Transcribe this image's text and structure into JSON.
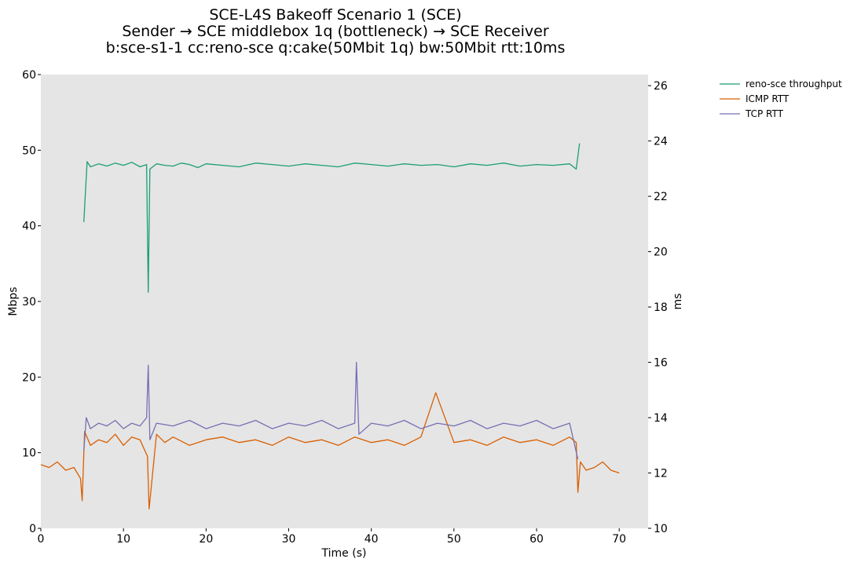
{
  "chart_data": {
    "type": "line",
    "title": [
      "SCE-L4S Bakeoff Scenario 1 (SCE)",
      "Sender → SCE middlebox 1q (bottleneck) → SCE Receiver",
      "b:sce-s1-1 cc:reno-sce q:cake(50Mbit 1q) bw:50Mbit rtt:10ms"
    ],
    "xlabel": "Time (s)",
    "ylabel_left": "Mbps",
    "ylabel_right": "ms",
    "xlim": [
      0,
      73.5
    ],
    "ylim_left": [
      0,
      60
    ],
    "ylim_right": [
      10,
      26.4
    ],
    "xticks": [
      0,
      10,
      20,
      30,
      40,
      50,
      60,
      70
    ],
    "yticks_left": [
      0,
      10,
      20,
      30,
      40,
      50,
      60
    ],
    "yticks_right": [
      10,
      12,
      14,
      16,
      18,
      20,
      22,
      24,
      26
    ],
    "grid": false,
    "legend_position": "top-right-outside",
    "series": [
      {
        "name": "reno-sce throughput",
        "axis": "left",
        "color": "#1b9e77",
        "x": [
          5.2,
          5.6,
          6,
          7,
          8,
          9,
          10,
          11,
          12,
          12.8,
          13,
          13.2,
          14,
          15,
          16,
          17,
          18,
          19,
          20,
          22,
          24,
          26,
          28,
          30,
          32,
          34,
          36,
          38,
          40,
          42,
          44,
          46,
          48,
          50,
          52,
          54,
          56,
          58,
          60,
          62,
          64,
          64.8,
          65.2
        ],
        "y": [
          40.5,
          48.5,
          47.8,
          48.2,
          47.9,
          48.3,
          48.0,
          48.4,
          47.8,
          48.1,
          31.2,
          47.5,
          48.2,
          48.0,
          47.9,
          48.3,
          48.1,
          47.7,
          48.2,
          48.0,
          47.8,
          48.3,
          48.1,
          47.9,
          48.2,
          48.0,
          47.8,
          48.3,
          48.1,
          47.9,
          48.2,
          48.0,
          48.1,
          47.8,
          48.2,
          48.0,
          48.3,
          47.9,
          48.1,
          48.0,
          48.2,
          47.5,
          50.9
        ]
      },
      {
        "name": "ICMP RTT",
        "axis": "right",
        "color": "#d95f02",
        "x": [
          0,
          1,
          2,
          3,
          4,
          4.8,
          5.0,
          5.3,
          6,
          7,
          8,
          9,
          10,
          11,
          12,
          12.9,
          13.1,
          14,
          15,
          16,
          18,
          20,
          22,
          24,
          26,
          28,
          30,
          32,
          34,
          36,
          38,
          40,
          42,
          44,
          46,
          47.8,
          50,
          52,
          54,
          56,
          58,
          60,
          62,
          64,
          64.8,
          65.0,
          65.3,
          66,
          67,
          68,
          69,
          70
        ],
        "y": [
          12.3,
          12.2,
          12.4,
          12.1,
          12.2,
          11.8,
          11.0,
          13.5,
          13.0,
          13.2,
          13.1,
          13.4,
          13.0,
          13.3,
          13.2,
          12.6,
          10.7,
          13.4,
          13.1,
          13.3,
          13.0,
          13.2,
          13.3,
          13.1,
          13.2,
          13.0,
          13.3,
          13.1,
          13.2,
          13.0,
          13.3,
          13.1,
          13.2,
          13.0,
          13.3,
          14.9,
          13.1,
          13.2,
          13.0,
          13.3,
          13.1,
          13.2,
          13.0,
          13.3,
          13.1,
          11.3,
          12.4,
          12.1,
          12.2,
          12.4,
          12.1,
          12.0
        ]
      },
      {
        "name": "TCP RTT",
        "axis": "right",
        "color": "#7570b3",
        "x": [
          5.2,
          5.5,
          6,
          7,
          8,
          9,
          10,
          11,
          12,
          12.8,
          13,
          13.2,
          14,
          16,
          18,
          20,
          22,
          24,
          26,
          28,
          30,
          32,
          34,
          36,
          38.0,
          38.2,
          38.5,
          40,
          42,
          44,
          46,
          48,
          50,
          52,
          54,
          56,
          58,
          60,
          62,
          64,
          65.0
        ],
        "y": [
          12.8,
          14.0,
          13.6,
          13.8,
          13.7,
          13.9,
          13.6,
          13.8,
          13.7,
          14.0,
          15.9,
          13.2,
          13.8,
          13.7,
          13.9,
          13.6,
          13.8,
          13.7,
          13.9,
          13.6,
          13.8,
          13.7,
          13.9,
          13.6,
          13.8,
          16.0,
          13.4,
          13.8,
          13.7,
          13.9,
          13.6,
          13.8,
          13.7,
          13.9,
          13.6,
          13.8,
          13.7,
          13.9,
          13.6,
          13.8,
          12.5
        ]
      }
    ]
  },
  "colors": {
    "plot_background": "#e5e5e5"
  }
}
